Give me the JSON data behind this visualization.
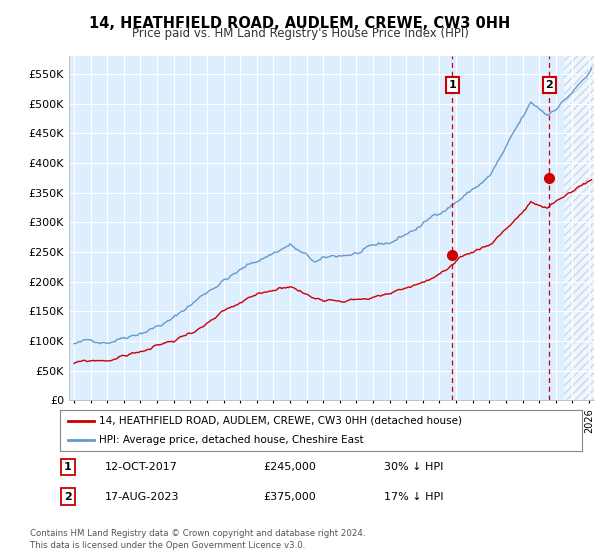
{
  "title": "14, HEATHFIELD ROAD, AUDLEM, CREWE, CW3 0HH",
  "subtitle": "Price paid vs. HM Land Registry's House Price Index (HPI)",
  "ylabel_ticks": [
    "£0",
    "£50K",
    "£100K",
    "£150K",
    "£200K",
    "£250K",
    "£300K",
    "£350K",
    "£400K",
    "£450K",
    "£500K",
    "£550K"
  ],
  "ytick_values": [
    0,
    50000,
    100000,
    150000,
    200000,
    250000,
    300000,
    350000,
    400000,
    450000,
    500000,
    550000
  ],
  "xlim_start": 1994.7,
  "xlim_end": 2026.3,
  "ylim_min": 0,
  "ylim_max": 580000,
  "hpi_color": "#6699CC",
  "property_color": "#CC0000",
  "marker1_year": 2017.78,
  "marker1_value": 245000,
  "marker2_year": 2023.62,
  "marker2_value": 375000,
  "vline_color": "#CC0000",
  "annotation1_label": "1",
  "annotation2_label": "2",
  "legend_property": "14, HEATHFIELD ROAD, AUDLEM, CREWE, CW3 0HH (detached house)",
  "legend_hpi": "HPI: Average price, detached house, Cheshire East",
  "note1_date": "12-OCT-2017",
  "note1_price": "£245,000",
  "note1_pct": "30% ↓ HPI",
  "note2_date": "17-AUG-2023",
  "note2_price": "£375,000",
  "note2_pct": "17% ↓ HPI",
  "footer": "Contains HM Land Registry data © Crown copyright and database right 2024.\nThis data is licensed under the Open Government Licence v3.0.",
  "background_color": "#DDEEFF",
  "plot_bg_color": "#DDEEFF",
  "grid_color": "#FFFFFF",
  "hatch_start_year": 2024.5
}
